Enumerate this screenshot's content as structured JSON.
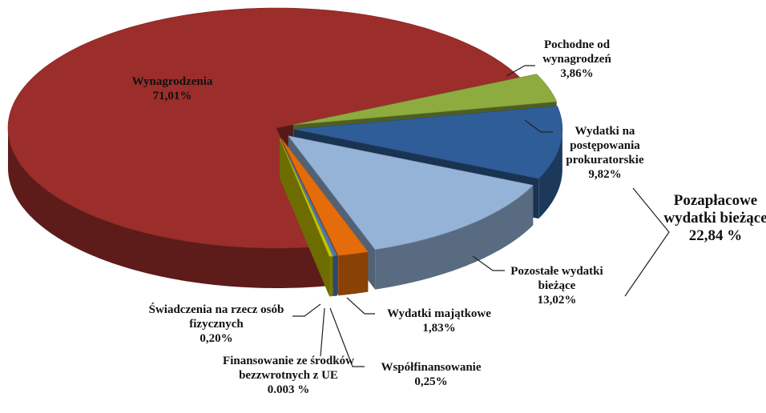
{
  "chart_data": {
    "type": "pie3d",
    "categories": [
      "Pochodne od wynagrodzeń",
      "Wydatki na postępowania prokuratorskie",
      "Pozostałe wydatki bieżące",
      "Wydatki majątkowe",
      "Współfinansowanie",
      "Finansowanie ze środków bezzwrotnych z UE",
      "Świadczenia na rzecz osób fizycznych",
      "Wynagrodzenia"
    ],
    "values": [
      3.86,
      9.82,
      13.02,
      1.83,
      0.25,
      0.003,
      0.2,
      71.01
    ],
    "value_labels": [
      "3,86%",
      "9,82%",
      "13,02%",
      "1,83%",
      "0,25%",
      "0.003 %",
      "0,20%",
      "71,01%"
    ],
    "colors": [
      "#8dab3f",
      "#2f5d97",
      "#95b3d7",
      "#e46c0a",
      "#4a78b5",
      "#8c8c8c",
      "#c4c400",
      "#9b2d2a"
    ],
    "annotations": [
      {
        "text": "Pozapłacowe wydatki bieżące",
        "label": "22,84 %"
      }
    ]
  }
}
